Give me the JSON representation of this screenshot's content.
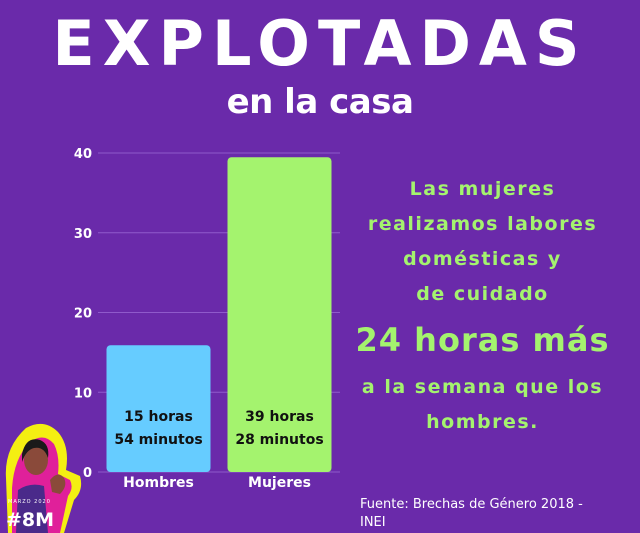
{
  "header": {
    "title": "EXPLOTADAS",
    "subtitle": "en la casa"
  },
  "chart_data": {
    "type": "bar",
    "categories": [
      "Hombres",
      "Mujeres"
    ],
    "values": [
      15.9,
      39.47
    ],
    "bar_labels": [
      [
        "15 horas",
        "54 minutos"
      ],
      [
        "39 horas",
        "28 minutos"
      ]
    ],
    "yticks": [
      0,
      10,
      20,
      30,
      40
    ],
    "ylim": [
      0,
      40
    ],
    "grid": true,
    "colors": [
      "#66ccff",
      "#a4f36e"
    ]
  },
  "message": {
    "line1": "Las mujeres",
    "line2": "realizamos labores",
    "line3": "domésticas y",
    "line4": "de cuidado",
    "highlight": "24 horas más",
    "line5": "a la semana que los",
    "line6": "hombres."
  },
  "source": "Fuente: Brechas de Género 2018 - INEI",
  "badge": {
    "text": "#8M",
    "year": "MARZO 2020"
  },
  "colors": {
    "background": "#6a2aaa",
    "accent_green": "#a4f36e",
    "accent_blue": "#66ccff"
  }
}
